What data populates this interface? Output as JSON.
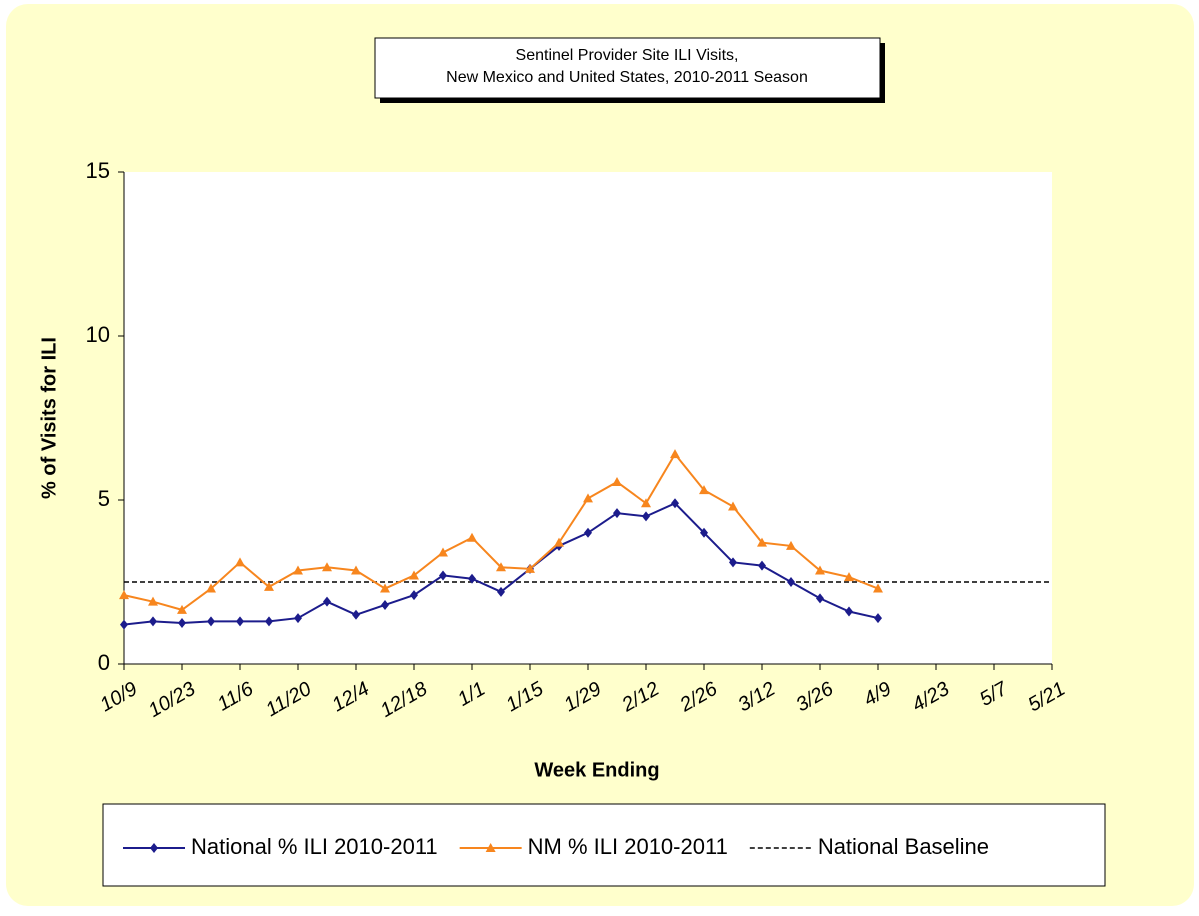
{
  "chart_data": {
    "type": "line",
    "title": [
      "Sentinel Provider Site ILI Visits,",
      "New Mexico and United States,  2010-2011 Season"
    ],
    "x_label": "Week Ending",
    "y_label": "% of Visits for ILI",
    "categories": [
      "10/9",
      null,
      "10/23",
      null,
      "11/6",
      null,
      "11/20",
      null,
      "12/4",
      null,
      "12/18",
      null,
      "1/1",
      null,
      "1/15",
      null,
      "1/29",
      null,
      "2/12",
      null,
      "2/26",
      null,
      "3/12",
      null,
      "3/26",
      null,
      "4/9",
      null,
      "4/23",
      null,
      "5/7",
      null,
      "5/21"
    ],
    "series": [
      {
        "name": "National % ILI 2010-2011",
        "color": "#1c1c8c",
        "marker": "diamond",
        "values": [
          1.2,
          1.3,
          1.25,
          1.3,
          1.3,
          1.3,
          1.4,
          1.9,
          1.5,
          1.8,
          2.1,
          2.7,
          2.6,
          2.2,
          2.9,
          3.6,
          4.0,
          4.6,
          4.5,
          4.9,
          4.0,
          3.1,
          3.0,
          2.5,
          2.0,
          1.6,
          1.4,
          null,
          null,
          null,
          null,
          null,
          null
        ]
      },
      {
        "name": "NM % ILI 2010-2011",
        "color": "#f7861e",
        "marker": "triangle",
        "values": [
          2.1,
          1.9,
          1.65,
          2.3,
          3.1,
          2.35,
          2.85,
          2.95,
          2.85,
          2.3,
          2.7,
          3.4,
          3.85,
          2.95,
          2.9,
          3.7,
          5.05,
          5.55,
          4.9,
          6.4,
          5.3,
          4.8,
          3.7,
          3.6,
          2.85,
          2.65,
          2.3,
          null,
          null,
          null,
          null,
          null,
          null
        ]
      }
    ],
    "baseline": {
      "name": "National Baseline",
      "value": 2.5,
      "color": "#000000",
      "dashed": true
    },
    "ylim": [
      0,
      15
    ],
    "yticks": [
      0,
      5,
      10,
      15
    ],
    "grid": false
  }
}
